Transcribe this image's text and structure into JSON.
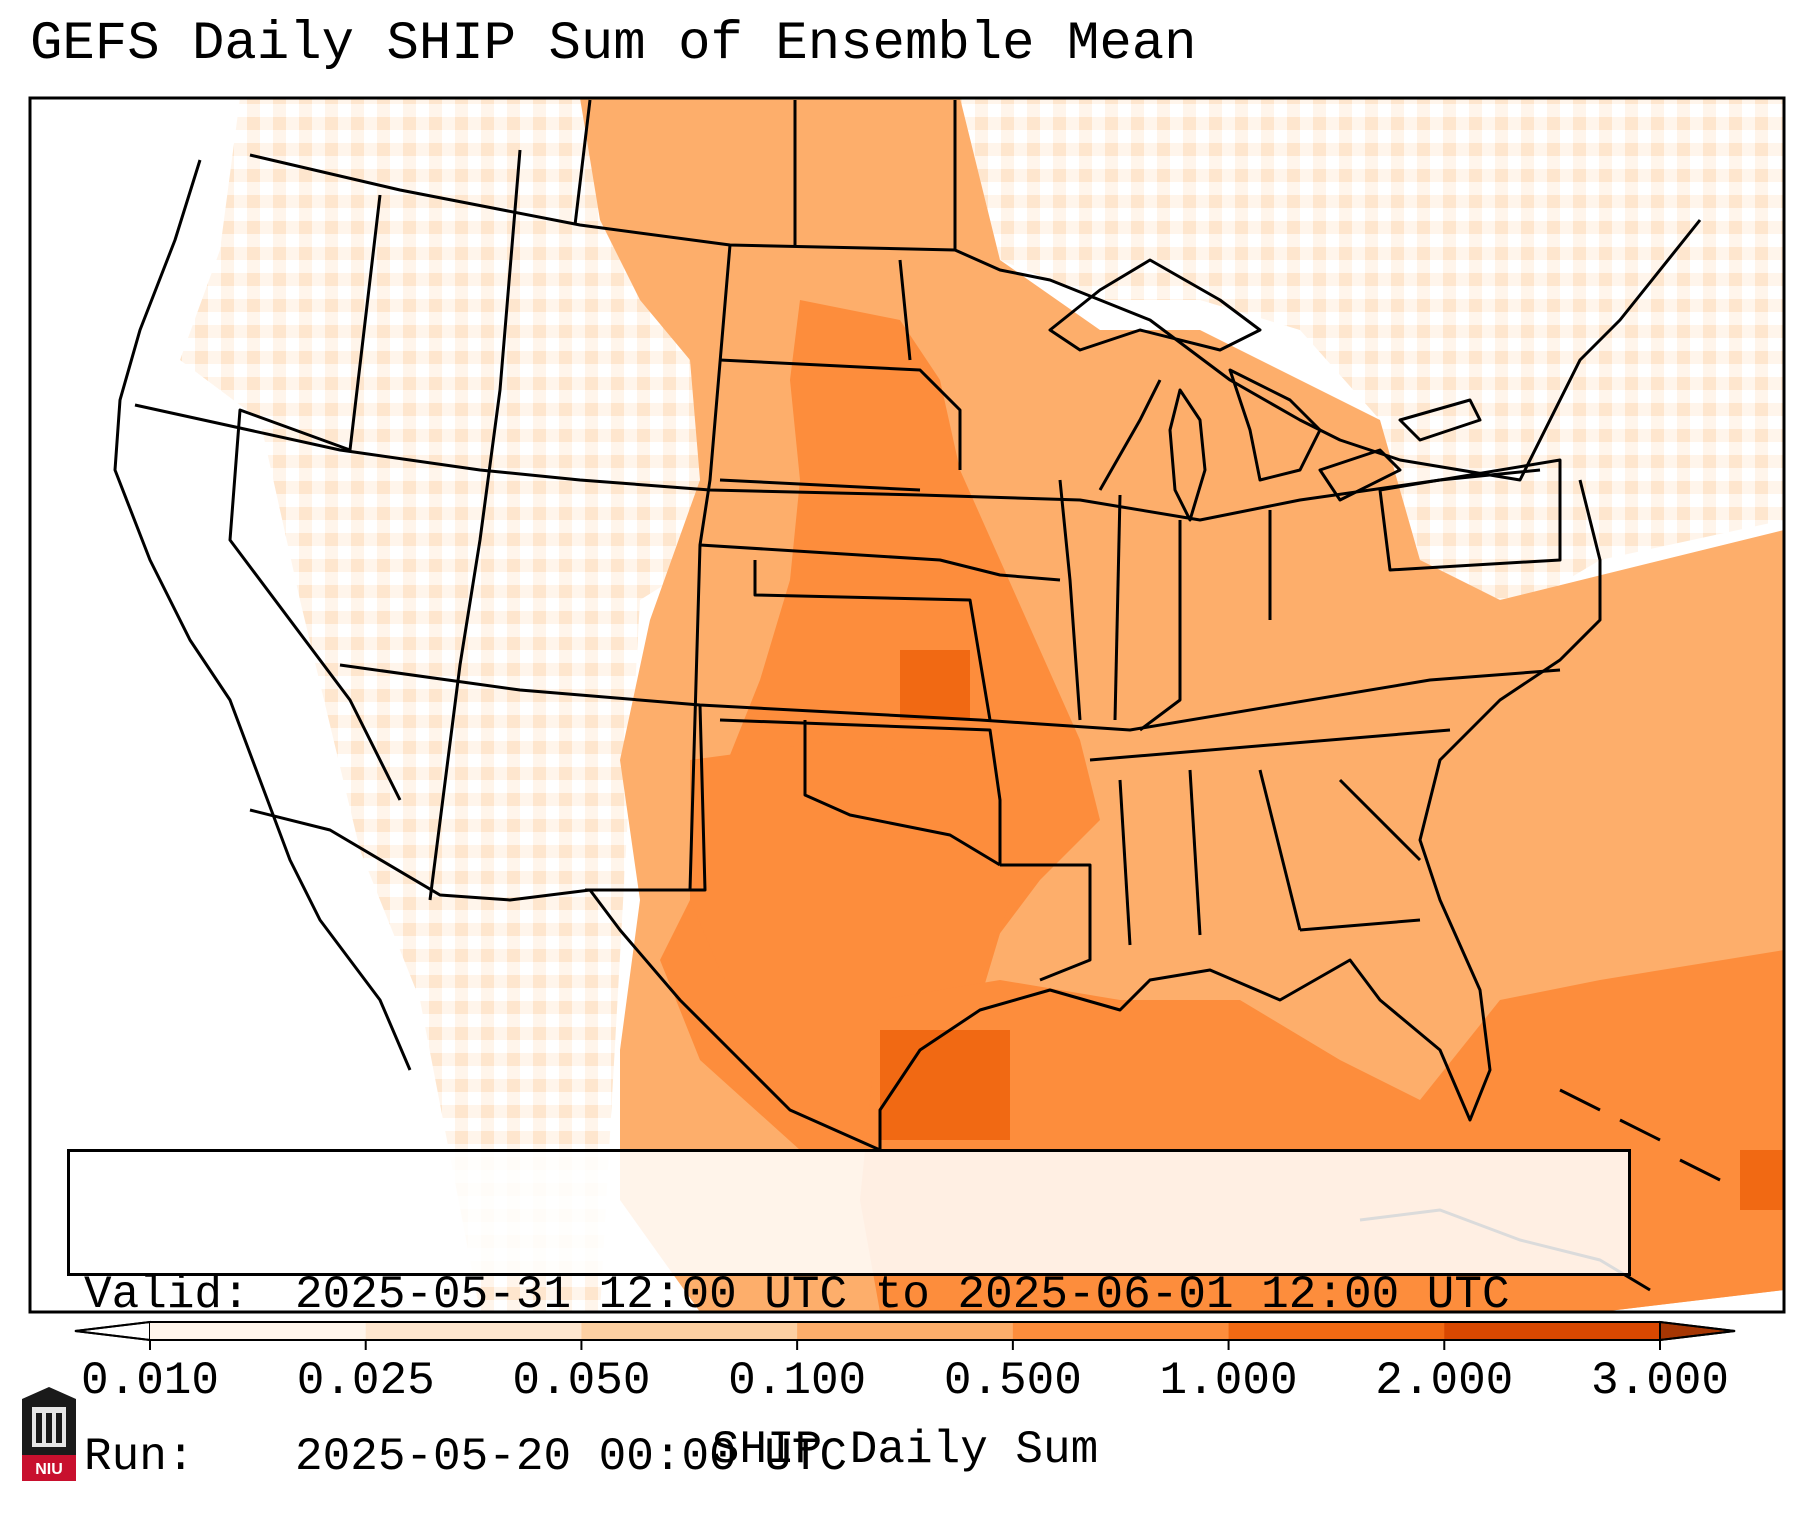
{
  "title": "GEFS Daily SHIP Sum of Ensemble Mean",
  "info": {
    "valid_label": "Valid:",
    "valid_value": "2025-05-31 12:00 UTC to 2025-06-01 12:00 UTC",
    "run_label": "Run:",
    "run_value": "2025-05-20 00:00 UTC"
  },
  "colorbar": {
    "label": "SHIP Daily Sum",
    "ticks": [
      "0.010",
      "0.025",
      "0.050",
      "0.100",
      "0.500",
      "1.000",
      "2.000",
      "3.000"
    ],
    "colors": [
      "#fff5eb",
      "#fee6ce",
      "#fdd0a2",
      "#fdae6b",
      "#fd8d3c",
      "#f16913",
      "#d94801",
      "#a63603"
    ],
    "extend": "both"
  },
  "logo": {
    "text": "NIU"
  }
}
